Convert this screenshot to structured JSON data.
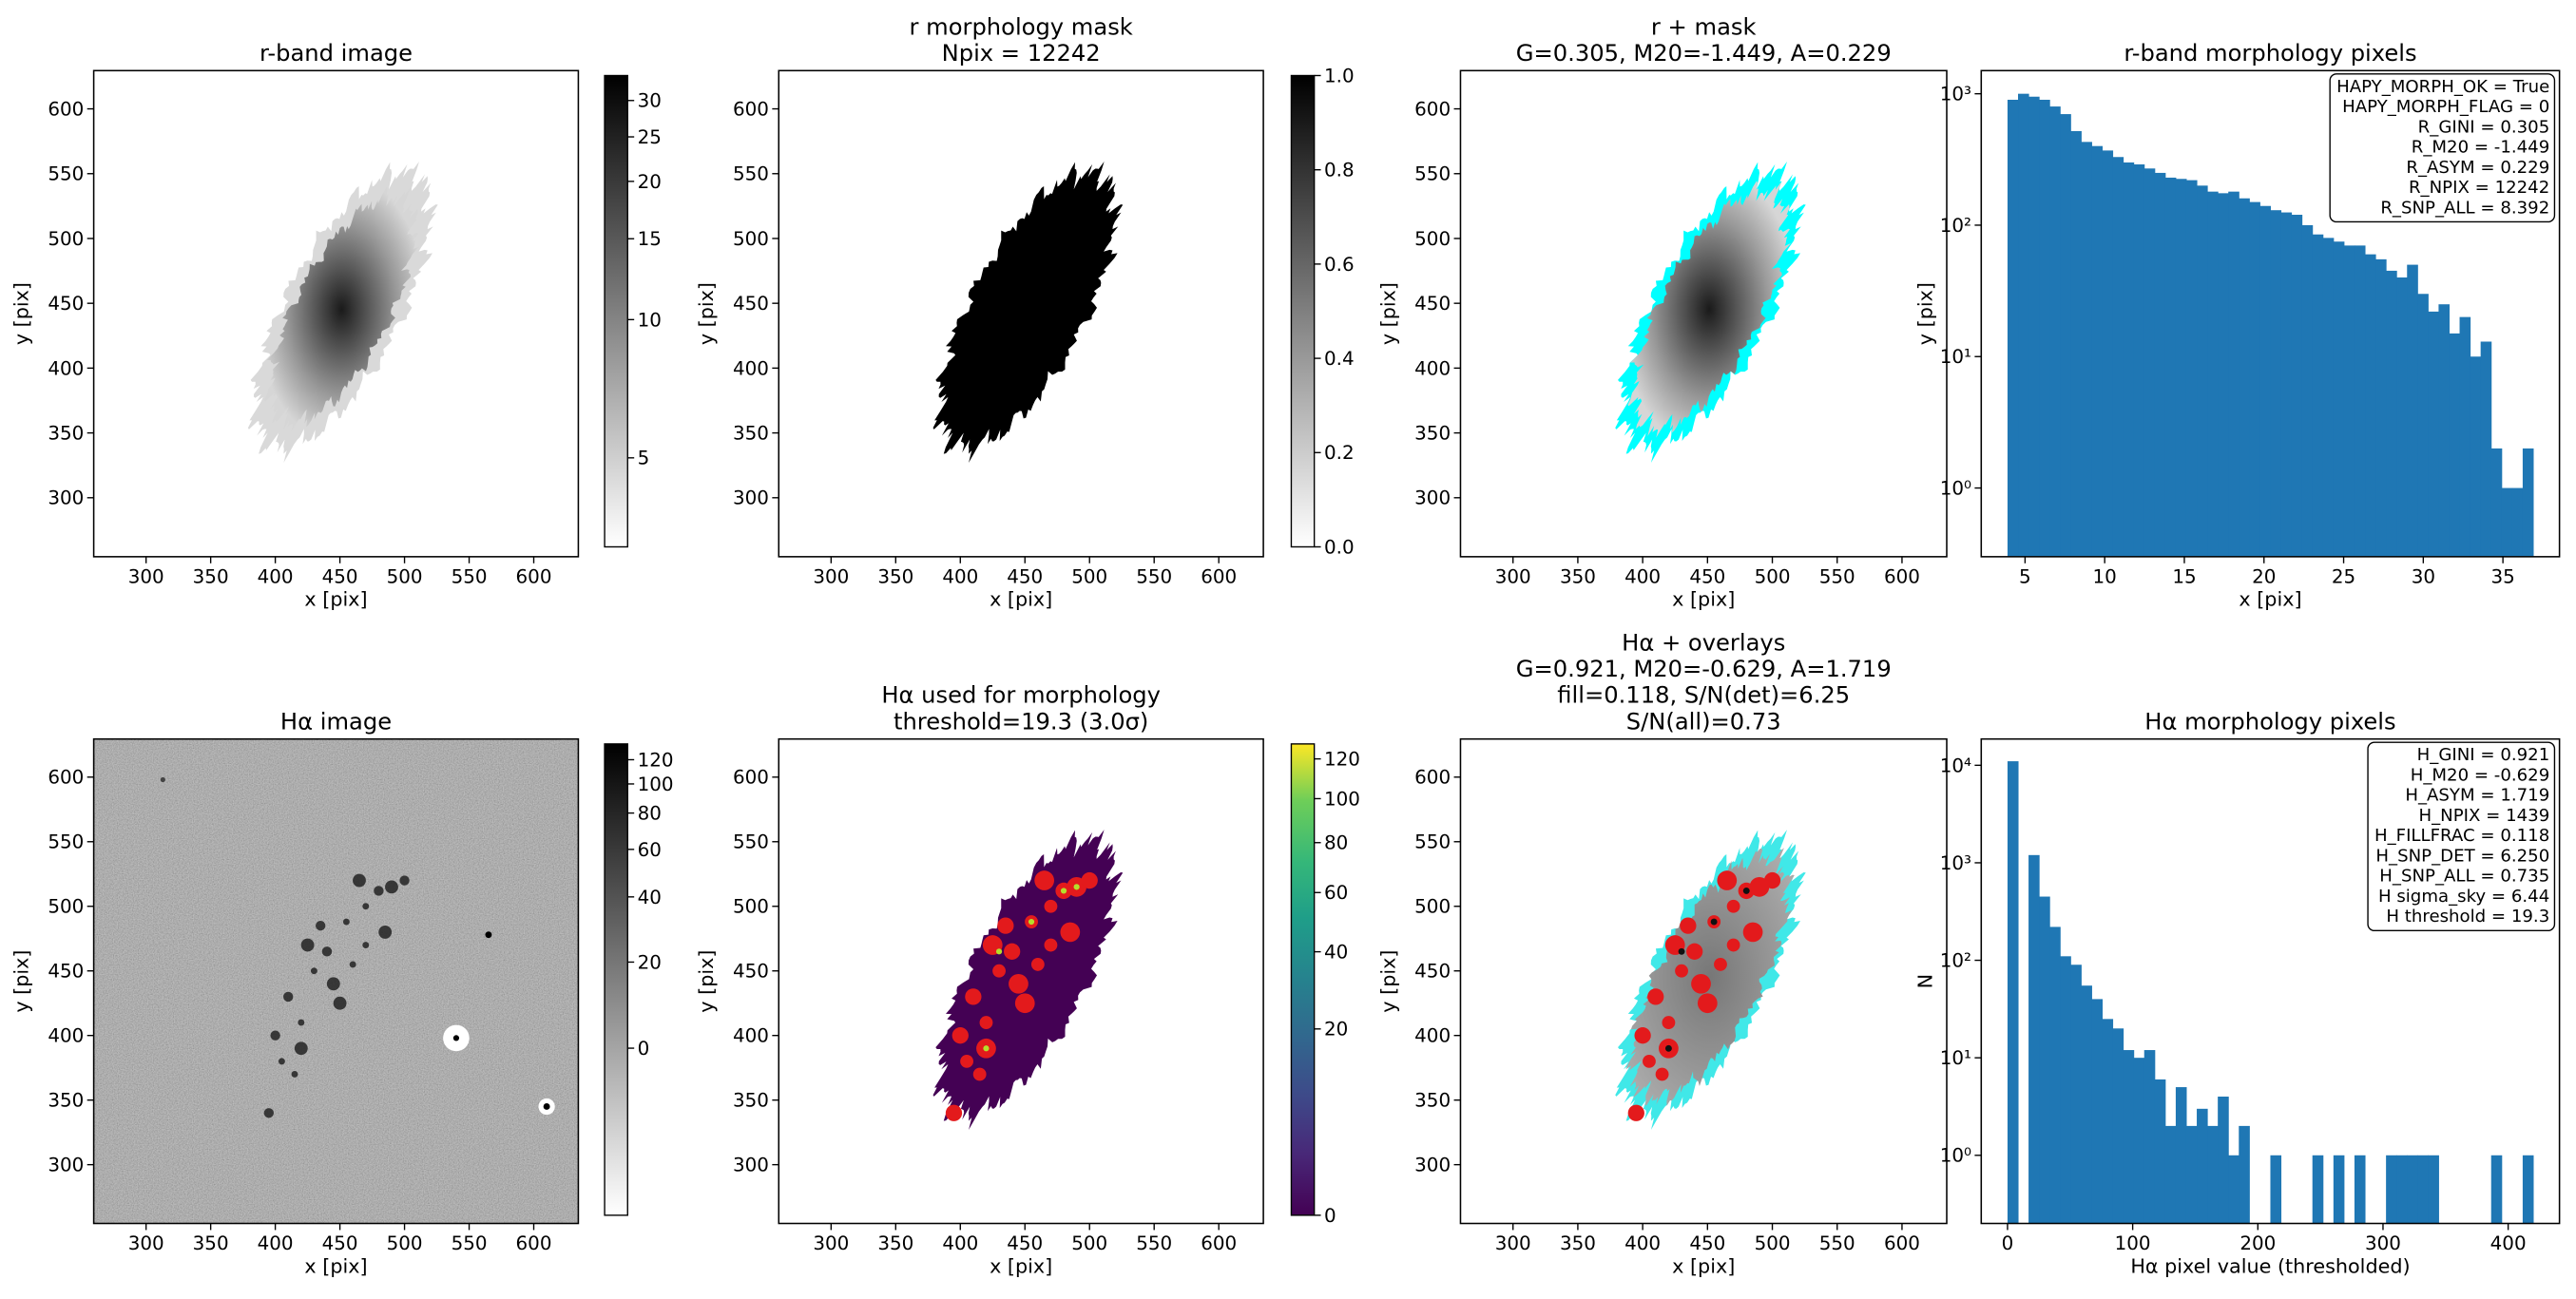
{
  "chart_data": [
    {
      "type": "image",
      "title": [
        "r-band image"
      ],
      "xlabel": "x [pix]",
      "ylabel": "y [pix]",
      "xlim": [
        259.5,
        634.5
      ],
      "ylim": [
        254.5,
        629.5
      ],
      "xticks": [
        300,
        350,
        400,
        450,
        500,
        550,
        600
      ],
      "yticks": [
        300,
        350,
        400,
        450,
        500,
        550,
        600
      ],
      "colorbar": {
        "cmap": "gray_r",
        "scale": "log",
        "clim": [
          3.2,
          34
        ],
        "ticks": [
          5,
          10,
          15,
          20,
          25,
          30
        ]
      }
    },
    {
      "type": "image",
      "title": [
        "r morphology mask",
        "Npix = 12242"
      ],
      "xlabel": "x [pix]",
      "ylabel": "y [pix]",
      "xlim": [
        259.5,
        634.5
      ],
      "ylim": [
        254.5,
        629.5
      ],
      "xticks": [
        300,
        350,
        400,
        450,
        500,
        550,
        600
      ],
      "yticks": [
        300,
        350,
        400,
        450,
        500,
        550,
        600
      ],
      "colorbar": {
        "cmap": "gray_r",
        "scale": "linear",
        "clim": [
          0,
          1
        ],
        "ticks": [
          {
            "value": 0,
            "label": "0.0"
          },
          0.2,
          0.4,
          0.6,
          0.8,
          {
            "value": 1,
            "label": "1.0"
          }
        ]
      }
    },
    {
      "type": "image",
      "title": [
        "r + mask",
        "G=0.305, M20=-1.449, A=0.229"
      ],
      "xlabel": "x [pix]",
      "ylabel": "y [pix]",
      "xlim": [
        259.5,
        634.5
      ],
      "ylim": [
        254.5,
        629.5
      ],
      "xticks": [
        300,
        350,
        400,
        450,
        500,
        550,
        600
      ],
      "yticks": [
        300,
        350,
        400,
        450,
        500,
        550,
        600
      ]
    },
    {
      "type": "histogram",
      "title": [
        "r-band morphology pixels"
      ],
      "xlabel": "x [pix]",
      "ylabel": "y [pix]",
      "color": "#1f77b4",
      "yscale": "log",
      "xlim": [
        2.25,
        38.55
      ],
      "ylim": [
        0.3,
        1500
      ],
      "xticks": [
        5,
        10,
        15,
        20,
        25,
        30,
        35
      ],
      "yticks": [
        {
          "value": 1,
          "label": "10⁰"
        },
        {
          "value": 10,
          "label": "10¹"
        },
        {
          "value": 100,
          "label": "10²"
        },
        {
          "value": 1000,
          "label": "10³"
        }
      ],
      "bins": [
        3.9,
        4.56,
        5.22,
        5.88,
        6.54,
        7.2,
        7.86,
        8.52,
        9.18,
        9.84,
        10.5,
        11.16,
        11.82,
        12.48,
        13.14,
        13.8,
        14.46,
        15.12,
        15.78,
        16.44,
        17.1,
        17.76,
        18.42,
        19.08,
        19.74,
        20.4,
        21.06,
        21.72,
        22.38,
        23.04,
        23.7,
        24.36,
        25.02,
        25.68,
        26.34,
        27,
        27.66,
        28.32,
        28.98,
        29.64,
        30.3,
        30.96,
        31.62,
        32.28,
        32.94,
        33.6,
        34.26,
        34.92,
        35.58,
        36.24,
        36.9
      ],
      "counts": [
        900,
        1000,
        950,
        900,
        800,
        700,
        520,
        430,
        400,
        370,
        330,
        300,
        290,
        270,
        250,
        230,
        225,
        220,
        200,
        180,
        175,
        180,
        160,
        150,
        140,
        130,
        125,
        120,
        100,
        85,
        80,
        75,
        70,
        70,
        60,
        55,
        45,
        40,
        50,
        30,
        22,
        25,
        15,
        20,
        10,
        13,
        2,
        1,
        1,
        2
      ],
      "annotation": [
        "HAPY_MORPH_OK = True",
        "HAPY_MORPH_FLAG = 0",
        "R_GINI = 0.305",
        "R_M20 = -1.449",
        "R_ASYM = 0.229",
        "R_NPIX = 12242",
        "R_SNP_ALL = 8.392"
      ]
    },
    {
      "type": "image",
      "title": [
        "Hα image"
      ],
      "xlabel": "x [pix]",
      "ylabel": "y [pix]",
      "xlim": [
        259.5,
        634.5
      ],
      "ylim": [
        254.5,
        629.5
      ],
      "xticks": [
        300,
        350,
        400,
        450,
        500,
        550,
        600
      ],
      "yticks": [
        300,
        350,
        400,
        450,
        500,
        550,
        600
      ],
      "colorbar": {
        "cmap": "gray_r",
        "scale": "asinh",
        "clim": [
          -46,
          135
        ],
        "ticks": [
          0,
          20,
          40,
          60,
          80,
          100,
          120
        ]
      }
    },
    {
      "type": "image",
      "title": [
        "Hα used for morphology",
        "threshold=19.3 (3.0σ)"
      ],
      "xlabel": "x [pix]",
      "ylabel": "y [pix]",
      "xlim": [
        259.5,
        634.5
      ],
      "ylim": [
        254.5,
        629.5
      ],
      "xticks": [
        300,
        350,
        400,
        450,
        500,
        550,
        600
      ],
      "yticks": [
        300,
        350,
        400,
        450,
        500,
        550,
        600
      ],
      "colorbar": {
        "cmap": "viridis",
        "scale": "sqrt",
        "clim": [
          0,
          128
        ],
        "ticks": [
          0,
          20,
          40,
          60,
          80,
          100,
          120
        ]
      }
    },
    {
      "type": "image",
      "title": [
        "Hα + overlays",
        "G=0.921, M20=-0.629, A=1.719",
        "fill=0.118, S/N(det)=6.25",
        "S/N(all)=0.73"
      ],
      "xlabel": "x [pix]",
      "ylabel": "y [pix]",
      "xlim": [
        259.5,
        634.5
      ],
      "ylim": [
        254.5,
        629.5
      ],
      "xticks": [
        300,
        350,
        400,
        450,
        500,
        550,
        600
      ],
      "yticks": [
        300,
        350,
        400,
        450,
        500,
        550,
        600
      ]
    },
    {
      "type": "histogram",
      "title": [
        "Hα morphology pixels"
      ],
      "xlabel": "Hα pixel value (thresholded)",
      "ylabel": "N",
      "color": "#1f77b4",
      "yscale": "log",
      "xlim": [
        -21,
        441
      ],
      "ylim": [
        0.2,
        18600
      ],
      "xticks": [
        0,
        100,
        200,
        300,
        400
      ],
      "yticks": [
        {
          "value": 1,
          "label": "10⁰"
        },
        {
          "value": 10,
          "label": "10¹"
        },
        {
          "value": 100,
          "label": "10²"
        },
        {
          "value": 1000,
          "label": "10³"
        },
        {
          "value": 10000,
          "label": "10⁴"
        }
      ],
      "bins": [
        0,
        8.4,
        16.8,
        25.2,
        33.6,
        42,
        50.4,
        58.8,
        67.2,
        75.6,
        84,
        92.4,
        100.8,
        109.2,
        117.6,
        126,
        134.4,
        142.8,
        151.2,
        159.6,
        168,
        176.4,
        184.8,
        193.2,
        201.6,
        210,
        218.4,
        226.8,
        235.2,
        243.6,
        252,
        260.4,
        268.8,
        277.2,
        285.6,
        294,
        302.4,
        310.8,
        319.2,
        327.6,
        336,
        344.4,
        352.8,
        361.2,
        369.6,
        378,
        386.4,
        394.8,
        403.2,
        411.6,
        420
      ],
      "counts": [
        11000,
        0,
        1200,
        450,
        220,
        110,
        90,
        55,
        40,
        25,
        20,
        12,
        10,
        12,
        6,
        2,
        5,
        2,
        3,
        2,
        4,
        1,
        2,
        0,
        0,
        1,
        0,
        0,
        0,
        1,
        0,
        1,
        0,
        1,
        0,
        0,
        1,
        1,
        1,
        1,
        1,
        0,
        0,
        0,
        0,
        0,
        1,
        0,
        0,
        1
      ],
      "annotation": [
        "H_GINI = 0.921",
        "H_M20 = -0.629",
        "H_ASYM = 1.719",
        "H_NPIX = 1439",
        "H_FILLFRAC = 0.118",
        "H_SNP_DET = 6.250",
        "H_SNP_ALL = 0.735",
        "H sigma_sky = 6.44",
        "H threshold = 19.3"
      ]
    }
  ]
}
